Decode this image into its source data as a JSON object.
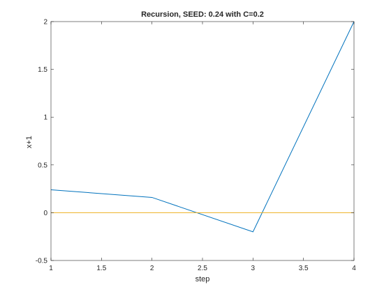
{
  "chart_data": {
    "type": "line",
    "title": "Recursion, SEED: 0.24 with C=0.2",
    "xlabel": "step",
    "ylabel": "x+1",
    "xlim": [
      1,
      4
    ],
    "ylim": [
      -0.5,
      2
    ],
    "xticks": [
      "1",
      "1.5",
      "2",
      "2.5",
      "3",
      "3.5",
      "4"
    ],
    "yticks": [
      "-0.5",
      "0",
      "0.5",
      "1",
      "1.5",
      "2"
    ],
    "grid": false,
    "legend": "none",
    "series": [
      {
        "x": [
          1,
          2,
          3,
          4
        ],
        "y": [
          0.24,
          0.16,
          -0.2,
          2.0
        ],
        "color": "#0072BD"
      },
      {
        "x": [
          1,
          4
        ],
        "y": [
          0,
          0
        ],
        "color": "#EDB120"
      }
    ]
  }
}
